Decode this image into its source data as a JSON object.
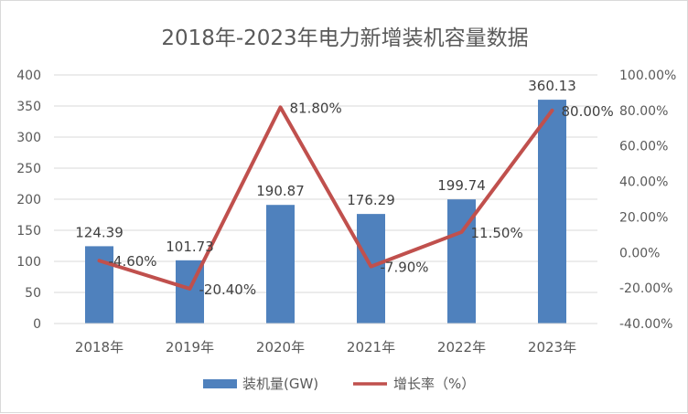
{
  "chart_data": {
    "type": "bar",
    "title": "2018年-2023年电力新增装机容量数据",
    "categories": [
      "2018年",
      "2019年",
      "2020年",
      "2021年",
      "2022年",
      "2023年"
    ],
    "series": [
      {
        "name": "装机量(GW)",
        "type": "bar",
        "axis": "left",
        "color": "#4f81bd",
        "values": [
          124.39,
          101.73,
          190.87,
          176.29,
          199.74,
          360.13
        ],
        "labels": [
          "124.39",
          "101.73",
          "190.87",
          "176.29",
          "199.74",
          "360.13"
        ]
      },
      {
        "name": "增长率（%）",
        "type": "line",
        "axis": "right",
        "color": "#c0504d",
        "values": [
          -4.6,
          -20.4,
          81.8,
          -7.9,
          11.5,
          80.0
        ],
        "labels": [
          "-4.60%",
          "-20.40%",
          "81.80%",
          "-7.90%",
          "11.50%",
          "80.00%"
        ]
      }
    ],
    "y_left": {
      "min": 0,
      "max": 400,
      "ticks": [
        0,
        50,
        100,
        150,
        200,
        250,
        300,
        350,
        400
      ],
      "tick_labels": [
        "0",
        "50",
        "100",
        "150",
        "200",
        "250",
        "300",
        "350",
        "400"
      ]
    },
    "y_right": {
      "min": -40,
      "max": 100,
      "ticks": [
        -40,
        -20,
        0,
        20,
        40,
        60,
        80,
        100
      ],
      "tick_labels": [
        "-40.00%",
        "-20.00%",
        "0.00%",
        "20.00%",
        "40.00%",
        "60.00%",
        "80.00%",
        "100.00%"
      ]
    },
    "grid": true,
    "legend_position": "bottom"
  }
}
